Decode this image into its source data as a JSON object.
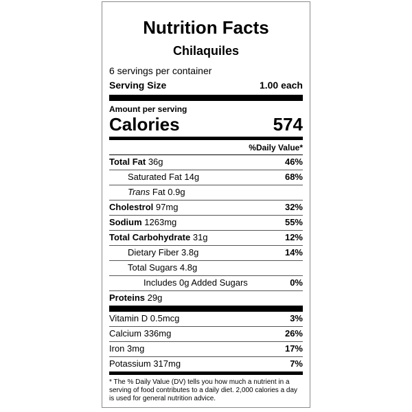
{
  "label": {
    "title": "Nutrition Facts",
    "product": "Chilaquiles",
    "servings_per_container": "6 servings per container",
    "serving_size_label": "Serving Size",
    "serving_size_value": "1.00 each",
    "amount_per_serving": "Amount per serving",
    "calories_label": "Calories",
    "calories_value": "574",
    "daily_value_header": "%Daily Value*",
    "nutrients": [
      {
        "name": "Total Fat",
        "amount": "36g",
        "dv": "46%"
      },
      {
        "name": "Saturated Fat",
        "amount": "14g",
        "dv": "68%"
      },
      {
        "name": "Trans",
        "amount": "Fat 0.9g",
        "dv": ""
      },
      {
        "name": "Cholestrol",
        "amount": "97mg",
        "dv": "32%"
      },
      {
        "name": "Sodium",
        "amount": "1263mg",
        "dv": "55%"
      },
      {
        "name": "Total Carbohydrate",
        "amount": "31g",
        "dv": "12%"
      },
      {
        "name": "Dietary Fiber",
        "amount": "3.8g",
        "dv": "14%"
      },
      {
        "name": "Total Sugars",
        "amount": "4.8g",
        "dv": ""
      },
      {
        "name": "Includes 0g Added Sugars",
        "amount": "",
        "dv": "0%"
      },
      {
        "name": "Proteins",
        "amount": "29g",
        "dv": ""
      }
    ],
    "vitamins": [
      {
        "name": "Vitamin D",
        "amount": "0.5mcg",
        "dv": "3%"
      },
      {
        "name": "Calcium",
        "amount": "336mg",
        "dv": "26%"
      },
      {
        "name": "Iron",
        "amount": "3mg",
        "dv": "17%"
      },
      {
        "name": "Potassium",
        "amount": "317mg",
        "dv": "7%"
      }
    ],
    "footnote": "* The % Daily Value (DV) tells you how much a nutrient in a serving of food contributes to a daily diet. 2,000 calories a day is used for general nutrition advice."
  }
}
